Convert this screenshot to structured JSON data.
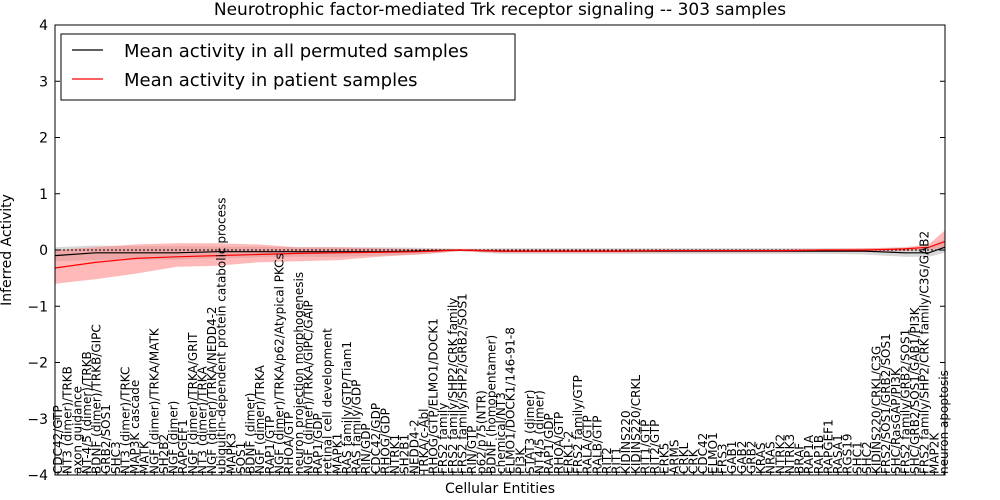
{
  "chart_data": {
    "type": "line",
    "title": "Neurotrophic factor-mediated Trk receptor signaling -- 303 samples",
    "xlabel": "Cellular Entities",
    "ylabel": "Inferred Activity",
    "ylim": [
      -4,
      4
    ],
    "yticks": [
      4,
      3,
      2,
      1,
      0,
      -1,
      -2,
      -3,
      -4
    ],
    "xlim": [
      0,
      110
    ],
    "legend_position": "upper-left",
    "colors": {
      "permuted": "#000000",
      "permuted_band": "#bdbdbd",
      "patient": "#ff0000",
      "patient_band": "#ff7f7f",
      "reference": "#000000"
    },
    "series": [
      {
        "name": "Mean activity in all permuted samples",
        "x": [
          0,
          5,
          10,
          15,
          20,
          25,
          30,
          35,
          40,
          45,
          50,
          55,
          60,
          65,
          70,
          75,
          80,
          85,
          90,
          95,
          100,
          105,
          108,
          110
        ],
        "values": [
          -0.1,
          -0.05,
          -0.05,
          -0.05,
          -0.03,
          -0.03,
          -0.03,
          -0.03,
          -0.03,
          -0.02,
          0.0,
          -0.02,
          -0.02,
          -0.02,
          -0.02,
          -0.02,
          -0.02,
          -0.02,
          -0.02,
          -0.02,
          -0.02,
          -0.05,
          -0.05,
          0.05
        ],
        "lower": [
          -0.2,
          -0.18,
          -0.17,
          -0.17,
          -0.15,
          -0.13,
          -0.12,
          -0.12,
          -0.1,
          -0.08,
          -0.02,
          -0.07,
          -0.07,
          -0.07,
          -0.07,
          -0.07,
          -0.07,
          -0.07,
          -0.07,
          -0.07,
          -0.08,
          -0.12,
          -0.12,
          -0.05
        ],
        "upper": [
          0.05,
          0.08,
          0.07,
          0.07,
          0.06,
          0.06,
          0.05,
          0.05,
          0.05,
          0.04,
          0.02,
          0.03,
          0.03,
          0.03,
          0.03,
          0.03,
          0.03,
          0.03,
          0.03,
          0.03,
          0.03,
          0.04,
          0.05,
          0.2
        ]
      },
      {
        "name": "Mean activity in patient samples",
        "x": [
          0,
          5,
          10,
          15,
          20,
          25,
          30,
          35,
          40,
          45,
          50,
          55,
          60,
          65,
          70,
          75,
          80,
          85,
          90,
          95,
          100,
          105,
          108,
          110
        ],
        "values": [
          -0.32,
          -0.22,
          -0.15,
          -0.12,
          -0.1,
          -0.08,
          -0.06,
          -0.05,
          -0.04,
          -0.03,
          0.0,
          -0.02,
          -0.02,
          -0.02,
          -0.02,
          -0.01,
          -0.01,
          -0.01,
          -0.01,
          0.0,
          0.0,
          0.02,
          0.05,
          0.15
        ],
        "lower": [
          -0.6,
          -0.52,
          -0.42,
          -0.3,
          -0.28,
          -0.22,
          -0.2,
          -0.18,
          -0.12,
          -0.08,
          -0.02,
          -0.05,
          -0.05,
          -0.05,
          -0.05,
          -0.04,
          -0.04,
          -0.04,
          -0.04,
          -0.03,
          -0.03,
          -0.02,
          0.0,
          0.05
        ],
        "upper": [
          0.0,
          0.05,
          0.1,
          0.12,
          0.12,
          0.1,
          0.05,
          0.05,
          0.03,
          0.02,
          0.02,
          0.01,
          0.01,
          0.01,
          0.01,
          0.01,
          0.01,
          0.01,
          0.01,
          0.02,
          0.03,
          0.05,
          0.1,
          0.35
        ]
      }
    ],
    "entity_labels": [
      "CDC42/GTP",
      "NT3 (dimer)/TRKB",
      "axon guidance",
      "NT-4/5 (dimer)/TRKB",
      "BDNF (dimer)/TRKB/GIPC",
      "GRB2/SOS1",
      "SHC3",
      "NT3 (dimer)/TRKC",
      "MAP3K cascade",
      "MATK",
      "NGF (dimer)/TRKA/MATK",
      "SH2B2",
      "NGF (dimer)",
      "RAPGEF1",
      "NGF (dimer)/TRKA/GRIT",
      "NT3 (dimer)/TRKA",
      "NGF (dimer)/TRKA/NEDD4-2",
      "ubiquitin-dependent protein catabolic process",
      "MAPK3",
      "SOS1",
      "BDNF (dimer)",
      "NGF (dimer)/TRKA",
      "RAP1/GTP",
      "NGF (dimer)/TRKA/p62/Atypical PKCs",
      "RHOA/GTP",
      "neuron projection morphogenesis",
      "NGF (dimer)/TRKA/GIPC/GAIP",
      "RAP1/GDP",
      "retinal cell development",
      "MAPK1",
      "RAS family/GTP/Tiam1",
      "RAS family/GDP",
      "RIN/GDP",
      "CDC42/GDP",
      "RHOG/GDP",
      "NTRK1",
      "SH2B1",
      "NEDD4-2",
      "TRKA/c-Abl",
      "RHOG/GTP/ELMO1/DOCK1",
      "FRS2 family",
      "FRS2 family/SHP2/CRK family",
      "FRS2 family/SHP2/GRB2/SOS1",
      "RIN/GTP",
      "p62/p75(NTR)",
      "BDNF (homopentamer)",
      "chemical/NT3",
      "ELMO1/DOCK1/146-91-8",
      "PI3K",
      "STAT3 (dimer)",
      "NT4/5 (dimer)",
      "RAP1/GDP",
      "RHOA/GTP",
      "ERK1-2",
      "FRS2 family/GTP",
      "RALA/GTP",
      "RALB/GTP",
      "RIT2",
      "RIT1",
      "KIDINS220",
      "KIDINS220/CRKL",
      "RIT1/GTP",
      "RIT2/GTP",
      "ERK5",
      "ARMS",
      "CRKL",
      "CRK",
      "CDC42",
      "ELMO1",
      "FRS3",
      "GAB1",
      "GAB2",
      "GRB2",
      "KRAS",
      "NRAS",
      "NTRK2",
      "NTRK3",
      "BRAF",
      "RAP1A",
      "RAP1B",
      "RAPGEF1",
      "RASA1",
      "RGS19",
      "SHC1",
      "SHC2",
      "KIDINS220/CRKL/C3G",
      "FRS2/SOS1/GRB2/SOS1",
      "SHC/RasGAP/PI3K",
      "FRS2 family/GRB2/SOS1",
      "SHC/GRB2/SOS1/GAB1/PI3K",
      "FRS2 family/SHP2/CRK family/C3G/GAB2",
      "MAP2K",
      "neuron apoptosis"
    ]
  }
}
